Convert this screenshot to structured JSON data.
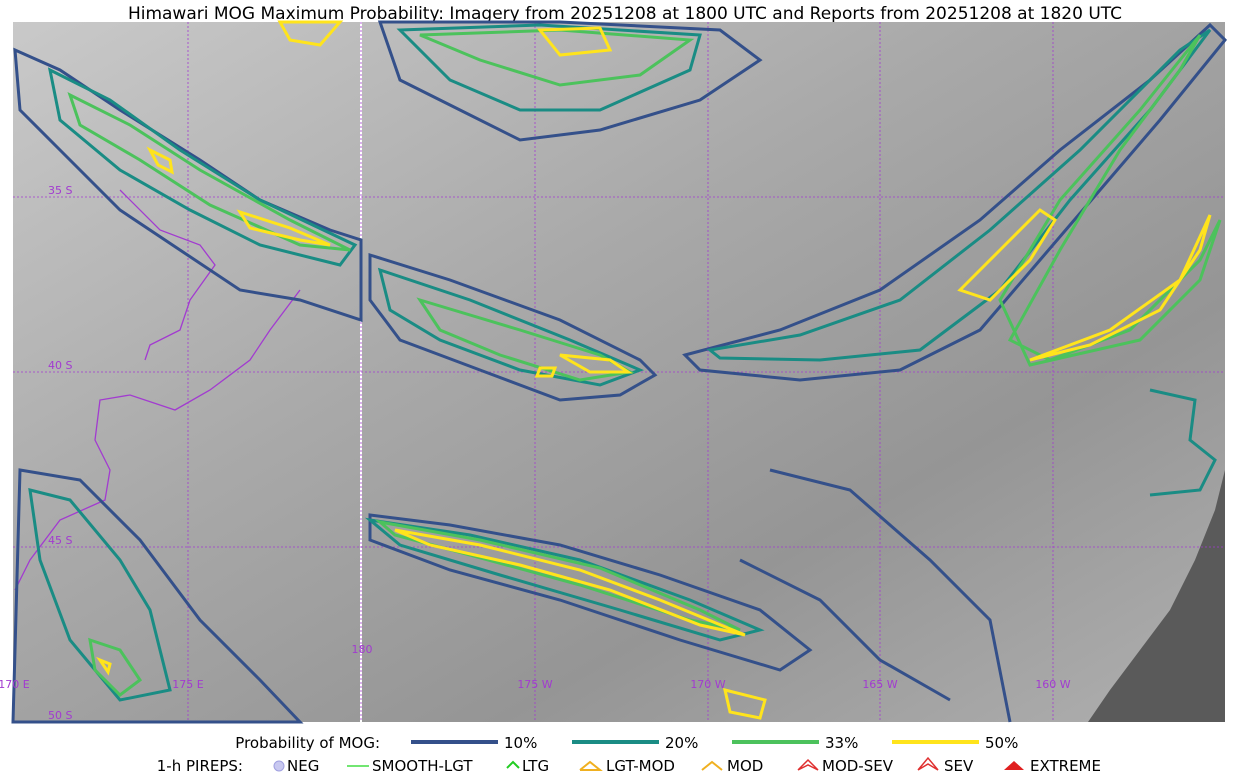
{
  "title": "Himawari MOG Maximum Probability: Imagery from 20251208 at 1800 UTC and Reports from 20251208 at 1820 UTC",
  "map": {
    "lat_labels": [
      "35 S",
      "40 S",
      "45 S",
      "50 S"
    ],
    "lon_labels": [
      "170 E",
      "175 E",
      "180",
      "175 W",
      "170 W",
      "165 W",
      "160 W"
    ]
  },
  "legend": {
    "probability": {
      "label": "Probability of MOG:",
      "items": [
        "10%",
        "20%",
        "33%",
        "50%"
      ]
    },
    "pireps": {
      "label": "1-h PIREPS:",
      "items": [
        "NEG",
        "SMOOTH-LGT",
        "LTG",
        "LGT-MOD",
        "MOD",
        "MOD-SEV",
        "SEV",
        "EXTREME"
      ]
    }
  }
}
